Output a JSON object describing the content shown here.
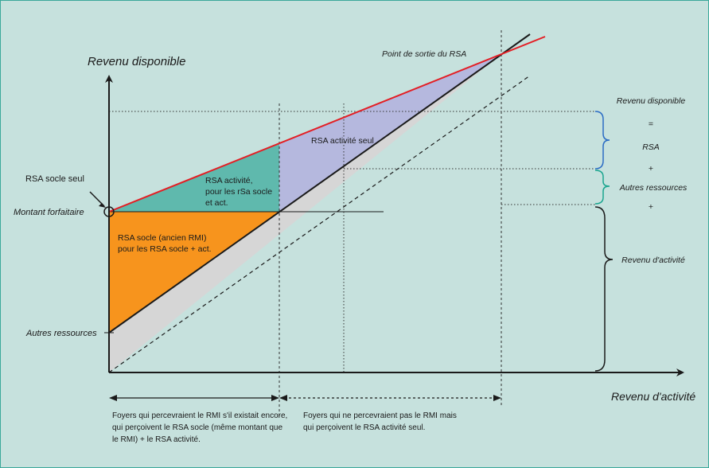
{
  "axes": {
    "y_label": "Revenu disponible",
    "x_label": "Revenu d'activité"
  },
  "left_labels": {
    "rsa_socle_seul": "RSA socle seul",
    "montant_forfaitaire": "Montant forfaitaire",
    "autres_ressources": "Autres ressources"
  },
  "regions": {
    "rsa_activite_line1": "RSA activité,",
    "rsa_activite_line2": "pour les rSa socle",
    "rsa_activite_line3": "et act.",
    "rsa_socle_line1": "RSA socle (ancien RMI)",
    "rsa_socle_line2": "pour les RSA socle + act.",
    "rsa_activite_seul": "RSA activité seul"
  },
  "point_sortie": "Point de sortie du RSA",
  "right_legend": {
    "revenu_disponible": "Revenu disponible",
    "equals": "=",
    "rsa": "RSA",
    "plus1": "+",
    "autres_ressources": "Autres ressources",
    "plus2": "+",
    "revenu_activite": "Revenu d'activité"
  },
  "bottom_notes": {
    "left_line1": "Foyers qui percevraient le RMI s'il existait encore,",
    "left_line2": "qui perçoivent le RSA socle (même montant que",
    "left_line3": "le RMI) + le RSA activité.",
    "right_line1": "Foyers qui ne percevraient pas le RMI mais",
    "right_line2": "qui perçoivent le RSA activité seul."
  },
  "colors": {
    "background": "#c6e1dd",
    "orange": "#f7941d",
    "teal": "#5fb9ad",
    "lavender": "#b5b8de",
    "grey": "#d6d6d6",
    "red_line": "#e31e24",
    "axis": "#1a1a1a",
    "blue_brace": "#2b6cc4",
    "green_brace": "#1aa58f"
  }
}
